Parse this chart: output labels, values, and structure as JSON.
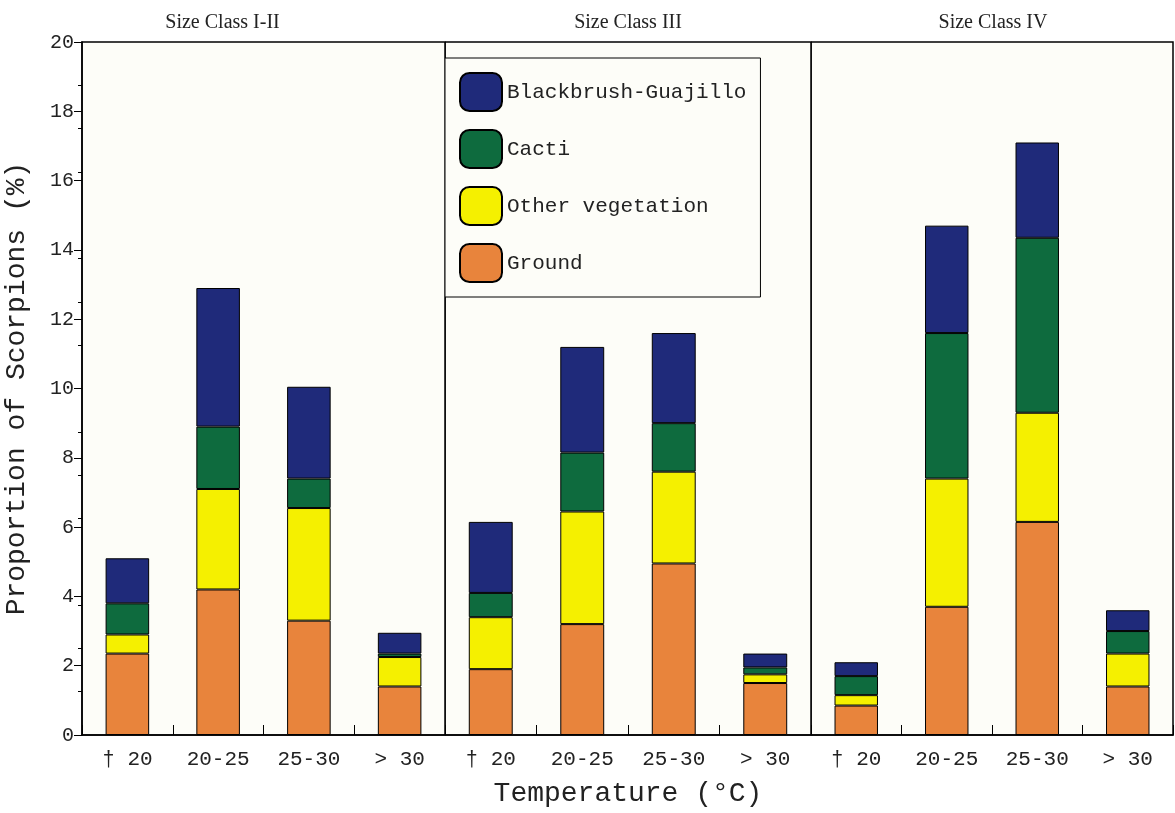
{
  "chart_data": [
    {
      "type": "bar",
      "title": "Size Class I-II",
      "ylabel": "Proportion of Scorpions (%)",
      "categories": [
        "† 20",
        "20-25",
        "25-30",
        "> 30"
      ],
      "stacked": true,
      "ylim": [
        0,
        20
      ],
      "yticks": [
        0,
        2,
        4,
        6,
        8,
        10,
        12,
        14,
        16,
        18,
        20
      ],
      "grid": false,
      "legend": false,
      "series": [
        {
          "color": "#e8843c",
          "values": [
            2.35,
            4.2,
            3.3,
            1.4
          ]
        },
        {
          "color": "#f5f000",
          "values": [
            0.55,
            2.9,
            3.25,
            0.85
          ]
        },
        {
          "color": "#0e6b3e",
          "values": [
            0.9,
            1.8,
            0.85,
            0.1
          ]
        },
        {
          "color": "#1f2a7a",
          "values": [
            1.3,
            4.0,
            2.65,
            0.6
          ]
        }
      ]
    },
    {
      "type": "bar",
      "title": "Size Class III",
      "xlabel": "Temperature (°C)",
      "categories": [
        "† 20",
        "20-25",
        "25-30",
        "> 30"
      ],
      "stacked": true,
      "ylim": [
        0,
        20
      ],
      "yticks": [
        0,
        2,
        4,
        6,
        8,
        10,
        12,
        14,
        16,
        18,
        20
      ],
      "tick_labels": "x",
      "grid": false,
      "legend": "top left",
      "series": [
        {
          "name": "Ground",
          "color": "#e8843c",
          "values": [
            1.9,
            3.2,
            4.95,
            1.5
          ]
        },
        {
          "name": "Other vegetation",
          "color": "#f5f000",
          "values": [
            1.5,
            3.25,
            2.65,
            0.25
          ]
        },
        {
          "name": "Cacti",
          "color": "#0e6b3e",
          "values": [
            0.7,
            1.7,
            1.4,
            0.2
          ]
        },
        {
          "name": "Blackbrush-Guajillo",
          "color": "#1f2a7a",
          "values": [
            2.05,
            3.05,
            2.6,
            0.4
          ]
        }
      ]
    },
    {
      "type": "bar",
      "title": "Size Class IV",
      "categories": [
        "† 20",
        "20-25",
        "25-30",
        "> 30"
      ],
      "stacked": true,
      "ylim": [
        0,
        20
      ],
      "yticks": [
        0,
        2,
        4,
        6,
        8,
        10,
        12,
        14,
        16,
        18,
        20
      ],
      "tick_labels": "x",
      "grid": false,
      "legend": false,
      "series": [
        {
          "color": "#e8843c",
          "values": [
            0.85,
            3.7,
            6.15,
            1.4
          ]
        },
        {
          "color": "#f5f000",
          "values": [
            0.3,
            3.7,
            3.15,
            0.95
          ]
        },
        {
          "color": "#0e6b3e",
          "values": [
            0.55,
            4.2,
            5.05,
            0.65
          ]
        },
        {
          "color": "#1f2a7a",
          "values": [
            0.4,
            3.1,
            2.75,
            0.6
          ]
        }
      ]
    }
  ]
}
